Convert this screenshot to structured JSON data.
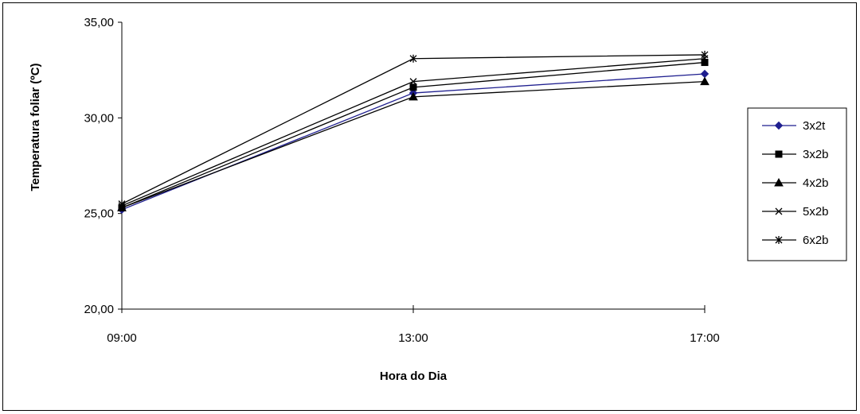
{
  "chart_data": {
    "type": "line",
    "xlabel": "Hora do Dia",
    "ylabel": "Temperatura foliar (ºC)",
    "categories": [
      "09:00",
      "13:00",
      "17:00"
    ],
    "yticks": [
      "20,00",
      "25,00",
      "30,00",
      "35,00"
    ],
    "ylim": [
      20,
      35
    ],
    "grid": false,
    "legend_position": "right",
    "series": [
      {
        "name": "3x2t",
        "values": [
          25.2,
          31.3,
          32.3
        ],
        "marker": "diamond",
        "color": "#1f1f8f"
      },
      {
        "name": "3x2b",
        "values": [
          25.3,
          31.6,
          32.9
        ],
        "marker": "square",
        "color": "#000000"
      },
      {
        "name": "4x2b",
        "values": [
          25.3,
          31.1,
          31.9
        ],
        "marker": "triangle",
        "color": "#000000"
      },
      {
        "name": "5x2b",
        "values": [
          25.4,
          31.9,
          33.1
        ],
        "marker": "x",
        "color": "#000000"
      },
      {
        "name": "6x2b",
        "values": [
          25.5,
          33.1,
          33.3
        ],
        "marker": "asterisk",
        "color": "#000000"
      }
    ]
  }
}
